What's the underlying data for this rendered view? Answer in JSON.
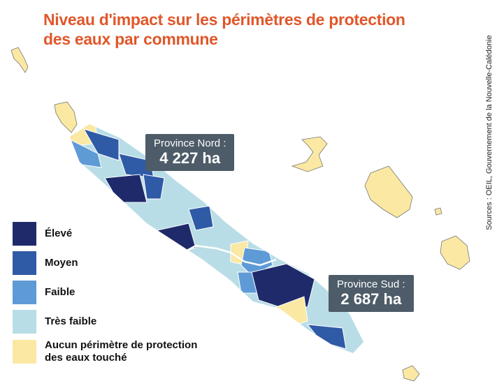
{
  "title": [
    "Niveau d'impact sur les périmètres de protection",
    "des eaux par commune"
  ],
  "callouts": [
    {
      "label": "Province Nord :",
      "value": "4 227 ha"
    },
    {
      "label": "Province Sud :",
      "value": "2 687 ha"
    }
  ],
  "legend": [
    {
      "label": "Élevé",
      "color": "#1f2a6b"
    },
    {
      "label": "Moyen",
      "color": "#2f5aa6"
    },
    {
      "label": "Faible",
      "color": "#5e9bd6"
    },
    {
      "label": "Très faible",
      "color": "#b8dde6"
    },
    {
      "label": "Aucun périmètre de protection des eaux touché",
      "color": "#fbe8a3"
    }
  ],
  "source": "Sources : OEIL, Gouvernement de la Nouvelle-Calédonie"
}
